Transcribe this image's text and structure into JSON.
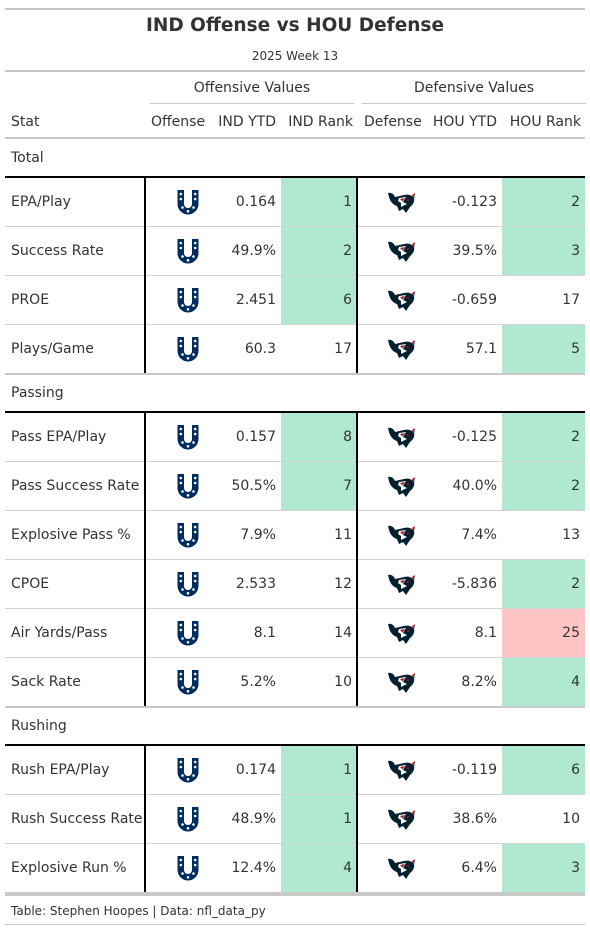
{
  "title": "IND Offense vs HOU Defense",
  "subtitle": "2025 Week 13",
  "spanners": {
    "offense": "Offensive Values",
    "defense": "Defensive Values"
  },
  "columns": {
    "stat": "Stat",
    "offense": "Offense",
    "ind_ytd": "IND YTD",
    "ind_rank": "IND Rank",
    "defense": "Defense",
    "hou_ytd": "HOU YTD",
    "hou_rank": "HOU Rank"
  },
  "icons": {
    "offense": "colts-horseshoe-logo",
    "defense": "texans-bull-logo"
  },
  "colors": {
    "colts_blue": "#002C5F",
    "texans_navy": "#03202F",
    "texans_red": "#A71930",
    "good_rank": "#b0e9cf",
    "bad_rank": "#ffc5c5"
  },
  "sections": [
    {
      "name": "Total",
      "rows": [
        {
          "stat": "EPA/Play",
          "ind_ytd": "0.164",
          "ind_rank": "1",
          "ind_hl": "green",
          "hou_ytd": "-0.123",
          "hou_rank": "2",
          "hou_hl": "green"
        },
        {
          "stat": "Success Rate",
          "ind_ytd": "49.9%",
          "ind_rank": "2",
          "ind_hl": "green",
          "hou_ytd": "39.5%",
          "hou_rank": "3",
          "hou_hl": "green"
        },
        {
          "stat": "PROE",
          "ind_ytd": "2.451",
          "ind_rank": "6",
          "ind_hl": "green",
          "hou_ytd": "-0.659",
          "hou_rank": "17",
          "hou_hl": "none"
        },
        {
          "stat": "Plays/Game",
          "ind_ytd": "60.3",
          "ind_rank": "17",
          "ind_hl": "none",
          "hou_ytd": "57.1",
          "hou_rank": "5",
          "hou_hl": "green"
        }
      ]
    },
    {
      "name": "Passing",
      "rows": [
        {
          "stat": "Pass EPA/Play",
          "ind_ytd": "0.157",
          "ind_rank": "8",
          "ind_hl": "green",
          "hou_ytd": "-0.125",
          "hou_rank": "2",
          "hou_hl": "green"
        },
        {
          "stat": "Pass Success Rate",
          "ind_ytd": "50.5%",
          "ind_rank": "7",
          "ind_hl": "green",
          "hou_ytd": "40.0%",
          "hou_rank": "2",
          "hou_hl": "green"
        },
        {
          "stat": "Explosive Pass %",
          "ind_ytd": "7.9%",
          "ind_rank": "11",
          "ind_hl": "none",
          "hou_ytd": "7.4%",
          "hou_rank": "13",
          "hou_hl": "none"
        },
        {
          "stat": "CPOE",
          "ind_ytd": "2.533",
          "ind_rank": "12",
          "ind_hl": "none",
          "hou_ytd": "-5.836",
          "hou_rank": "2",
          "hou_hl": "green"
        },
        {
          "stat": "Air Yards/Pass",
          "ind_ytd": "8.1",
          "ind_rank": "14",
          "ind_hl": "none",
          "hou_ytd": "8.1",
          "hou_rank": "25",
          "hou_hl": "red"
        },
        {
          "stat": "Sack Rate",
          "ind_ytd": "5.2%",
          "ind_rank": "10",
          "ind_hl": "none",
          "hou_ytd": "8.2%",
          "hou_rank": "4",
          "hou_hl": "green"
        }
      ]
    },
    {
      "name": "Rushing",
      "rows": [
        {
          "stat": "Rush EPA/Play",
          "ind_ytd": "0.174",
          "ind_rank": "1",
          "ind_hl": "green",
          "hou_ytd": "-0.119",
          "hou_rank": "6",
          "hou_hl": "green"
        },
        {
          "stat": "Rush Success Rate",
          "ind_ytd": "48.9%",
          "ind_rank": "1",
          "ind_hl": "green",
          "hou_ytd": "38.6%",
          "hou_rank": "10",
          "hou_hl": "none"
        },
        {
          "stat": "Explosive Run %",
          "ind_ytd": "12.4%",
          "ind_rank": "4",
          "ind_hl": "green",
          "hou_ytd": "6.4%",
          "hou_rank": "3",
          "hou_hl": "green"
        }
      ]
    }
  ],
  "footer": "Table: Stephen Hoopes | Data: nfl_data_py"
}
